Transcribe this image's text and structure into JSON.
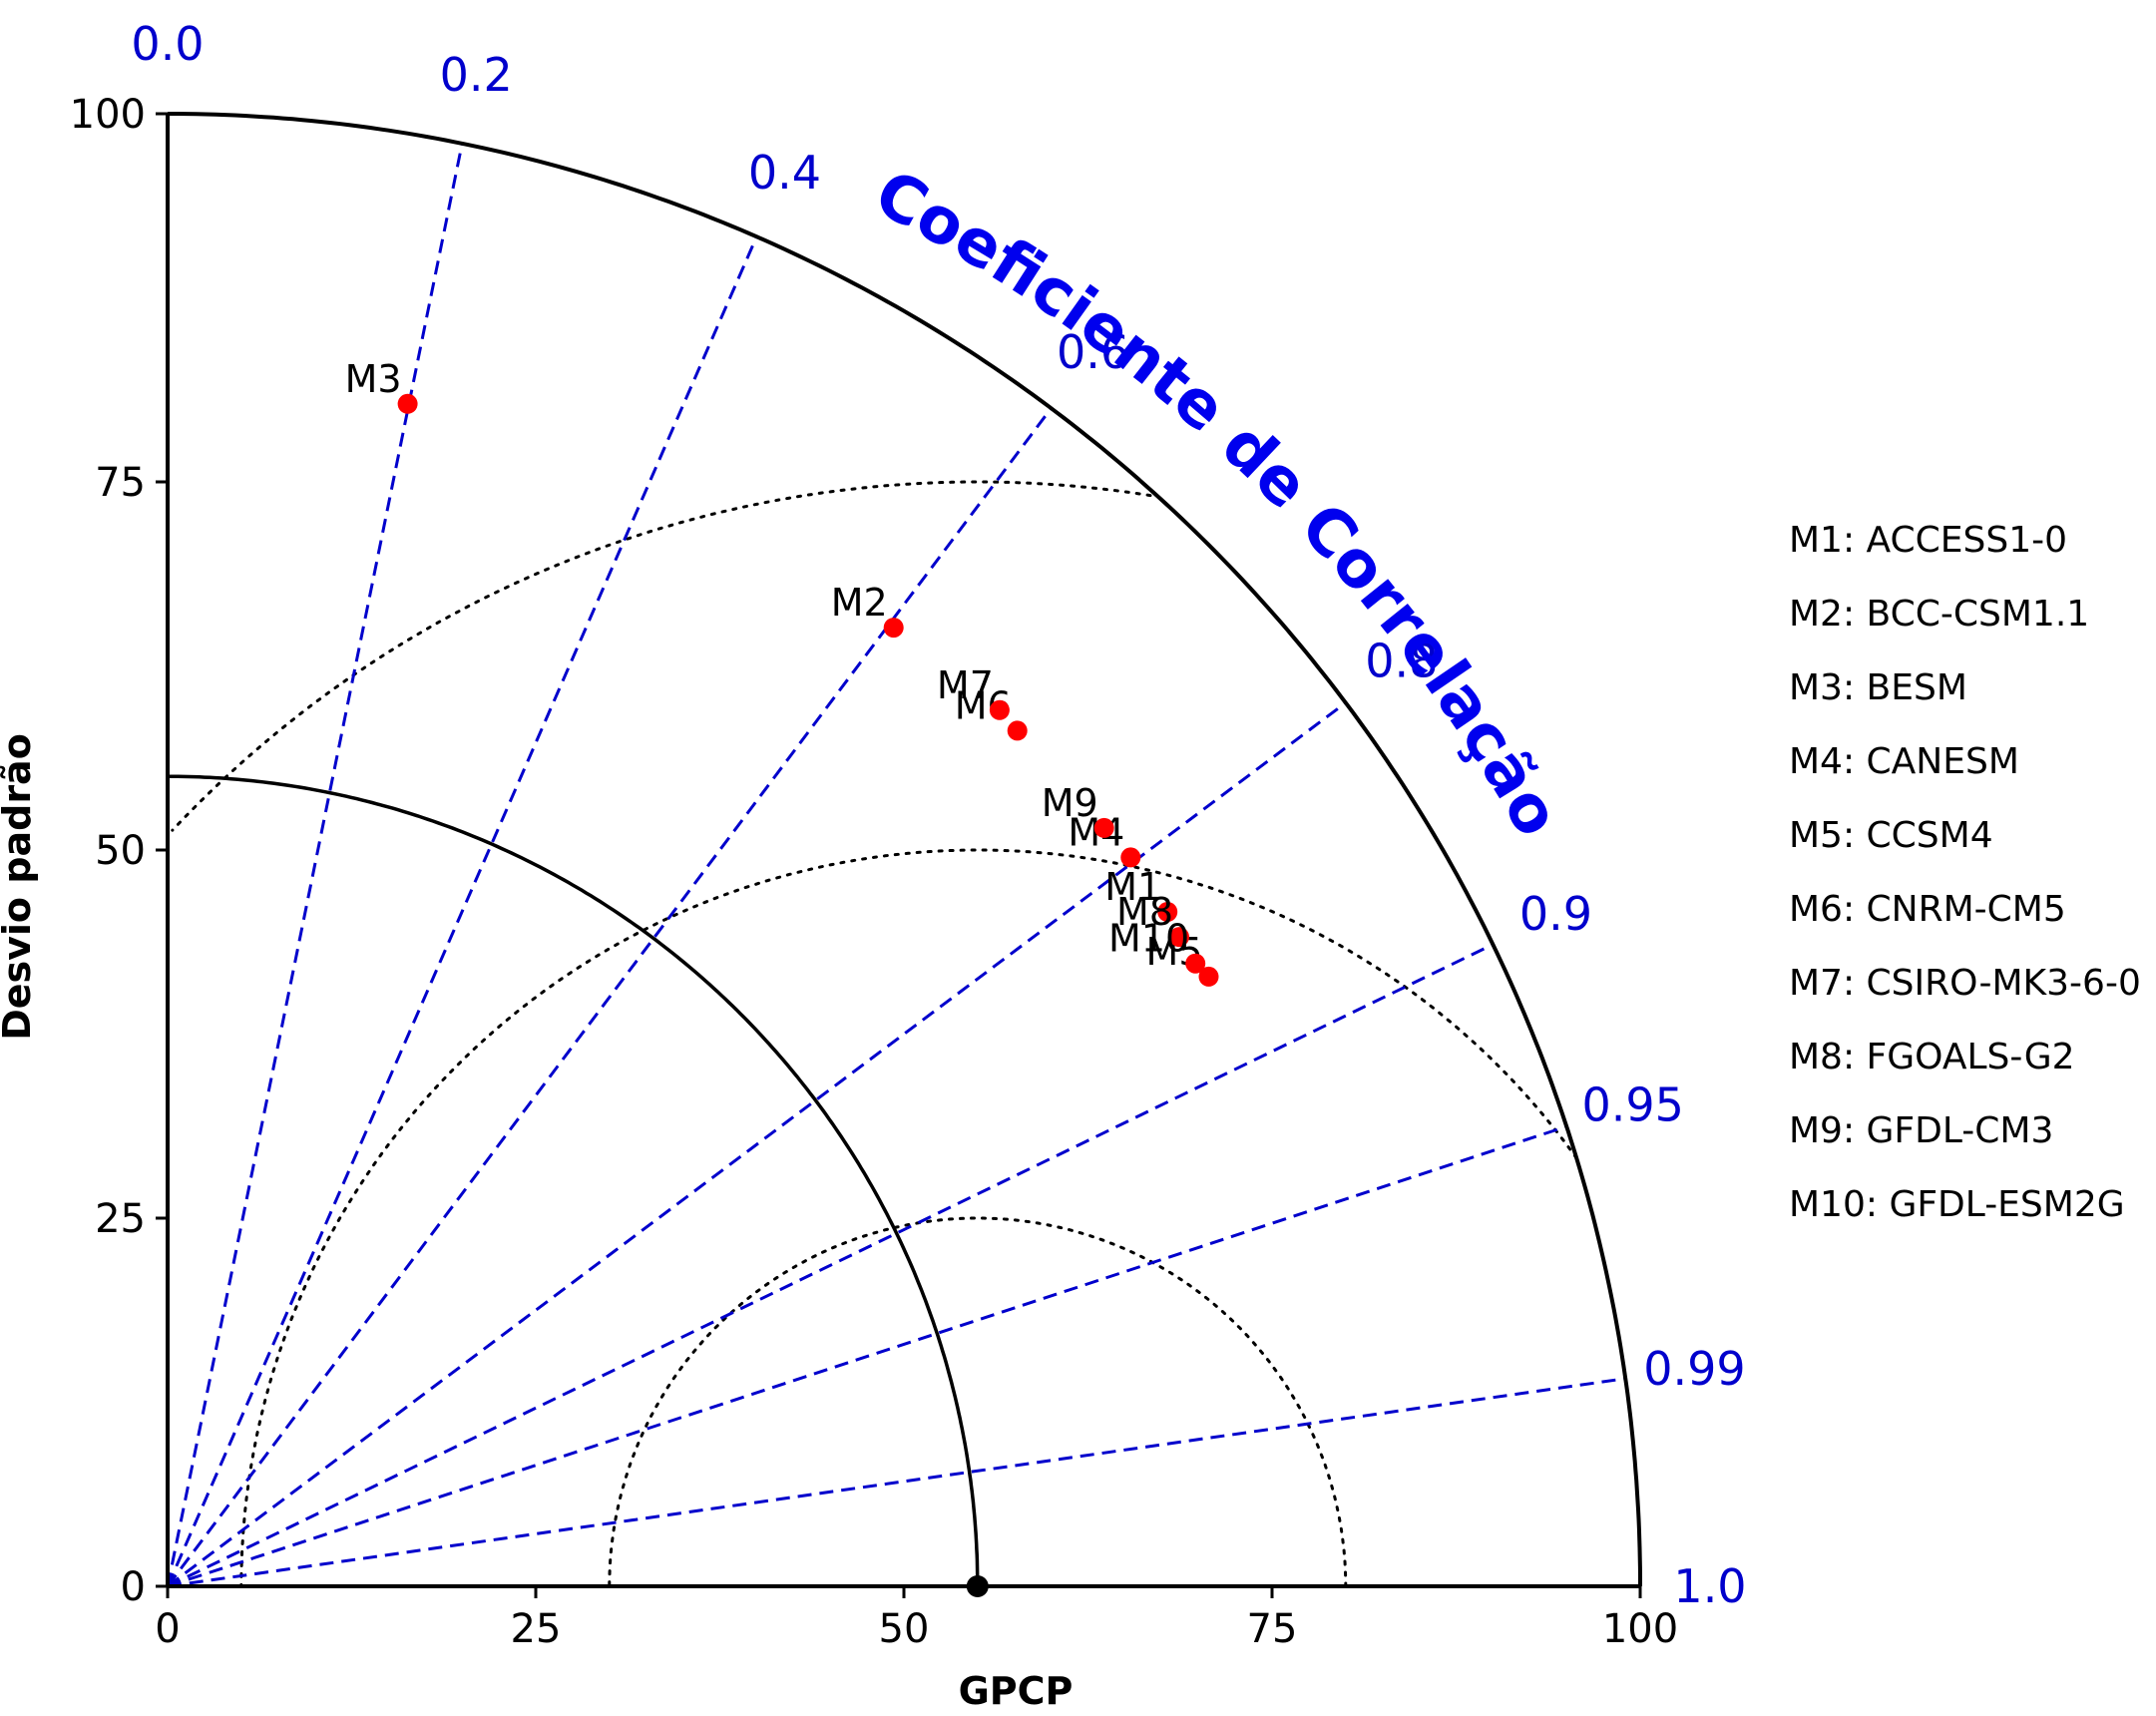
{
  "chart_data": {
    "type": "scatter",
    "subtype": "taylor-diagram",
    "title": "",
    "xlabel": "GPCP",
    "ylabel": "Desvio padrão",
    "arc_label": "Coeficiente de Correlação",
    "xlim": [
      0,
      100
    ],
    "ylim": [
      0,
      100
    ],
    "std_ticks": [
      0,
      25,
      50,
      75,
      100
    ],
    "std_tick_labels": [
      "0",
      "25",
      "50",
      "75",
      "100"
    ],
    "correlation_ticks": [
      0.0,
      0.2,
      0.4,
      0.6,
      0.8,
      0.9,
      0.95,
      0.99,
      1.0
    ],
    "correlation_tick_labels": [
      "0.0",
      "0.2",
      "0.4",
      "0.6",
      "0.8",
      "0.9",
      "0.95",
      "0.99",
      "1.0"
    ],
    "reference": {
      "name": "GPCP",
      "std": 55
    },
    "reference_arc_std": 55,
    "rms_contours": [
      25,
      50,
      75
    ],
    "grid": true,
    "legend_position": "right",
    "point_color": "#ff0000",
    "reference_color": "#000000",
    "correlation_color": "#0000cc",
    "points": [
      {
        "label": "M1",
        "x": 67.9,
        "y": 45.8
      },
      {
        "label": "M2",
        "x": 49.3,
        "y": 65.1
      },
      {
        "label": "M3",
        "x": 16.3,
        "y": 80.3
      },
      {
        "label": "M4",
        "x": 65.4,
        "y": 49.5
      },
      {
        "label": "M5",
        "x": 70.7,
        "y": 41.4
      },
      {
        "label": "M6",
        "x": 57.7,
        "y": 58.1
      },
      {
        "label": "M7",
        "x": 56.5,
        "y": 59.5
      },
      {
        "label": "M8",
        "x": 68.7,
        "y": 44.1
      },
      {
        "label": "M9",
        "x": 63.6,
        "y": 51.5
      },
      {
        "label": "M10",
        "x": 69.8,
        "y": 42.3
      }
    ],
    "legend": [
      "M1: ACCESS1-0",
      "M2: BCC-CSM1.1",
      "M3: BESM",
      "M4: CANESM",
      "M5: CCSM4",
      "M6: CNRM-CM5",
      "M7: CSIRO-MK3-6-0",
      "M8: FGOALS-G2",
      "M9: GFDL-CM3",
      "M10: GFDL-ESM2G"
    ]
  }
}
